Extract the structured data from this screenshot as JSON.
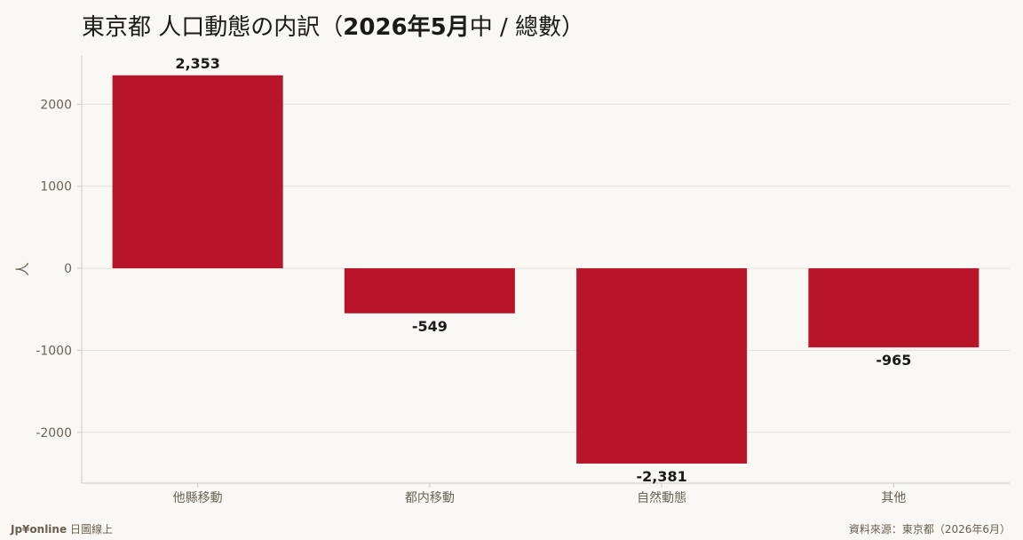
{
  "title": {
    "prefix": "東京都 人口動態の内訳（",
    "period": "2026年5月",
    "mid": "中 / 總數",
    "suffix": "）"
  },
  "footer": {
    "brand": "Jp¥online",
    "brand_suffix": "日圖線上",
    "source": "資料來源：東京都（2026年6月）"
  },
  "chart_data": {
    "type": "bar",
    "categories": [
      "他縣移動",
      "都内移動",
      "自然動態",
      "其他"
    ],
    "values": [
      2353,
      -549,
      -2381,
      -965
    ],
    "data_labels": [
      "2,353",
      "-549",
      "-2,381",
      "-965"
    ],
    "ylabel": "人",
    "ylim": [
      -2620,
      2600
    ],
    "yticks": [
      2000,
      1000,
      0,
      -1000,
      -2000
    ],
    "grid": true,
    "colors": {
      "bar": "#b8152b",
      "grid": "#e4e0d8",
      "tick_label": "#6b6255",
      "axis": "#cfc9bf",
      "data_label": "#1a1a1a"
    }
  }
}
